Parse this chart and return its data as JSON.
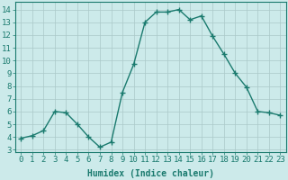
{
  "x": [
    0,
    1,
    2,
    3,
    4,
    5,
    6,
    7,
    8,
    9,
    10,
    11,
    12,
    13,
    14,
    15,
    16,
    17,
    18,
    19,
    20,
    21,
    22,
    23
  ],
  "y": [
    3.9,
    4.1,
    4.5,
    6.0,
    5.9,
    5.0,
    4.0,
    3.2,
    3.6,
    7.5,
    9.7,
    13.0,
    13.8,
    13.8,
    14.0,
    13.2,
    13.5,
    11.9,
    10.5,
    9.0,
    7.9,
    6.0,
    5.9,
    5.7
  ],
  "line_color": "#1a7a6e",
  "marker": "+",
  "marker_size": 4,
  "line_width": 1.0,
  "bg_color": "#cceaea",
  "grid_color": "#aac8c8",
  "xlabel": "Humidex (Indice chaleur)",
  "xlabel_fontsize": 7,
  "ylabel_ticks": [
    3,
    4,
    5,
    6,
    7,
    8,
    9,
    10,
    11,
    12,
    13,
    14
  ],
  "xlim": [
    -0.5,
    23.5
  ],
  "ylim": [
    2.8,
    14.6
  ],
  "xtick_labels": [
    "0",
    "1",
    "2",
    "3",
    "4",
    "5",
    "6",
    "7",
    "8",
    "9",
    "10",
    "11",
    "12",
    "13",
    "14",
    "15",
    "16",
    "17",
    "18",
    "19",
    "20",
    "21",
    "22",
    "23"
  ],
  "tick_fontsize": 6.5
}
